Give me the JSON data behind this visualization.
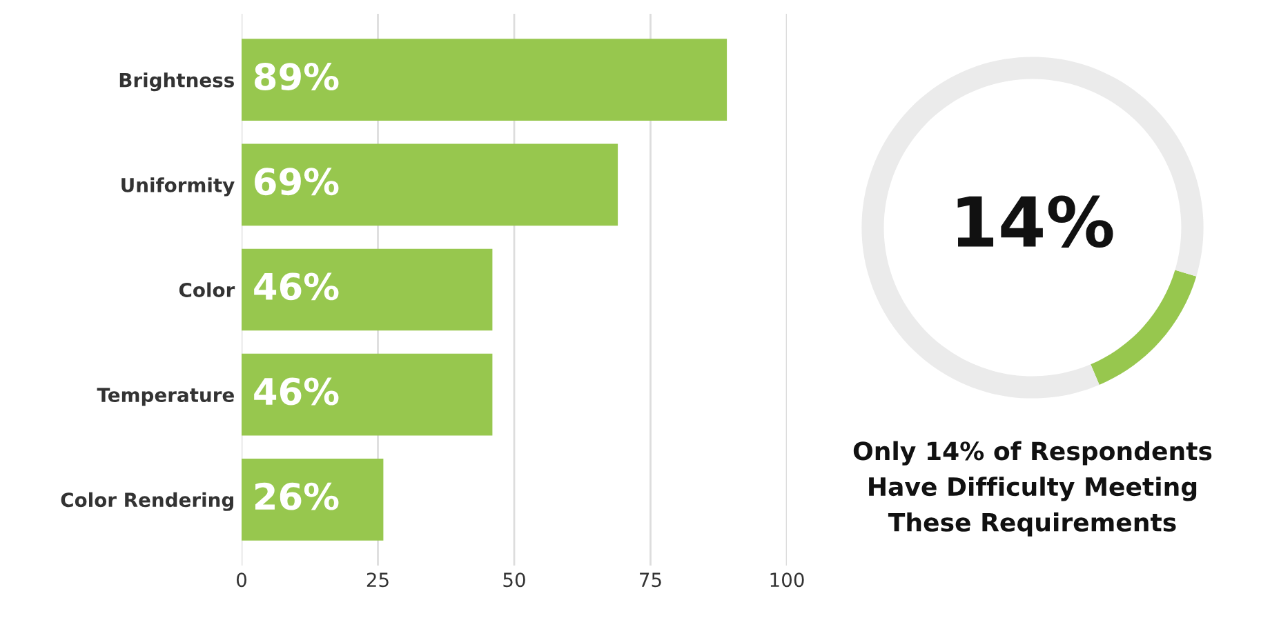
{
  "chart_data": [
    {
      "type": "bar",
      "orientation": "horizontal",
      "categories": [
        "Brightness",
        "Uniformity",
        "Color",
        "Temperature",
        "Color Rendering"
      ],
      "values": [
        89,
        69,
        46,
        46,
        26
      ],
      "value_labels": [
        "89%",
        "69%",
        "46%",
        "46%",
        "26%"
      ],
      "color": "#97c74e",
      "xlim": [
        0,
        100
      ],
      "xticks": [
        0,
        25,
        50,
        75,
        100
      ],
      "grid": "x"
    },
    {
      "type": "donut",
      "categories": [
        null,
        null
      ],
      "values": [
        14,
        86
      ],
      "colors": [
        "#97c74e",
        "#ebebeb"
      ],
      "title": "14%",
      "annotations": [
        "Only 14% of Respondents\nHave Difficulty Meeting\nThese Requirements"
      ]
    }
  ]
}
